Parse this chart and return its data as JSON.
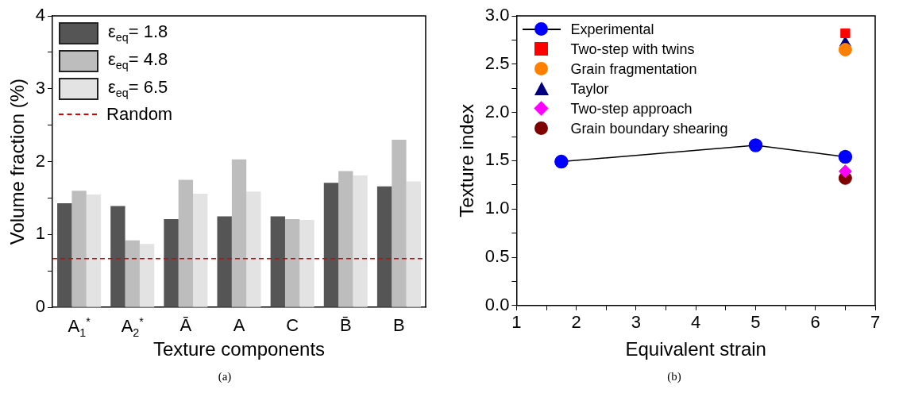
{
  "chart_data": [
    {
      "type": "bar",
      "xlabel": "Texture components",
      "ylabel": "Volume fraction (%)",
      "categories": [
        "A$_{1}$$^{*}$",
        "A$_{2}$$^{*}$",
        "Ā",
        "A",
        "C",
        "B̄",
        "B"
      ],
      "series": [
        {
          "name": "ε$_{eq}$= 1.8",
          "color": "#555555",
          "values": [
            1.43,
            1.39,
            1.21,
            1.25,
            1.25,
            1.71,
            1.66
          ]
        },
        {
          "name": "ε$_{eq}$= 4.8",
          "color": "#bdbdbd",
          "values": [
            1.6,
            0.92,
            1.75,
            2.03,
            1.21,
            1.87,
            2.3
          ]
        },
        {
          "name": "ε$_{eq}$= 6.5",
          "color": "#e3e3e3",
          "values": [
            1.55,
            0.87,
            1.56,
            1.59,
            1.2,
            1.81,
            1.73
          ]
        }
      ],
      "ref_lines": [
        {
          "axis": "y",
          "value": 0.67,
          "label": "Random",
          "color": "#dd0000",
          "line_style": "dashed"
        }
      ],
      "ylim": [
        0,
        4
      ],
      "yticks": [
        0,
        {
          "value": 0.5,
          "label": null
        },
        1,
        {
          "value": 1.5,
          "label": null
        },
        2,
        {
          "value": 2.5,
          "label": null
        },
        3,
        {
          "value": 3.5,
          "label": null
        },
        4
      ],
      "grid": false,
      "legend": "top left",
      "annotations": [
        "(a)"
      ]
    },
    {
      "type": "scatter",
      "xlabel": "Equivalent strain",
      "ylabel": "Texture index",
      "series": [
        {
          "name": "Experimental",
          "type": "line",
          "color": "#0000ff",
          "marker": "circle",
          "x": [
            1.75,
            5,
            6.5
          ],
          "values": [
            1.49,
            1.66,
            1.54
          ]
        },
        {
          "name": "Two-step with twins",
          "color": "#ff0000",
          "marker": "square",
          "x": [
            6.5
          ],
          "values": [
            2.82
          ]
        },
        {
          "name": "Grain fragmentation",
          "color": "#ff8000",
          "marker": "circle",
          "x": [
            6.5
          ],
          "values": [
            2.65
          ]
        },
        {
          "name": "Taylor",
          "color": "#000080",
          "marker": "triangle",
          "x": [
            6.5
          ],
          "values": [
            2.72
          ]
        },
        {
          "name": "Two-step approach",
          "color": "#ff00ff",
          "marker": "diamond",
          "x": [
            6.5
          ],
          "values": [
            1.39
          ]
        },
        {
          "name": "Grain boundary shearing",
          "color": "#800000",
          "marker": "circle",
          "x": [
            6.5
          ],
          "values": [
            1.32
          ]
        }
      ],
      "xlim": [
        1,
        7
      ],
      "xticks": [
        1,
        {
          "value": 1.5,
          "label": null
        },
        2,
        {
          "value": 2.5,
          "label": null
        },
        3,
        {
          "value": 3.5,
          "label": null
        },
        4,
        {
          "value": 4.5,
          "label": null
        },
        5,
        {
          "value": 5.5,
          "label": null
        },
        6,
        {
          "value": 6.5,
          "label": null
        },
        7
      ],
      "ylim": [
        0,
        3
      ],
      "yticks": [
        {
          "value": 0,
          "label": "0.0"
        },
        {
          "value": 0.25,
          "label": null
        },
        {
          "value": 0.5,
          "label": "0.5"
        },
        {
          "value": 0.75,
          "label": null
        },
        {
          "value": 1,
          "label": "1.0"
        },
        {
          "value": 1.25,
          "label": null
        },
        {
          "value": 1.5,
          "label": "1.5"
        },
        {
          "value": 1.75,
          "label": null
        },
        {
          "value": 2,
          "label": "2.0"
        },
        {
          "value": 2.25,
          "label": null
        },
        {
          "value": 2.5,
          "label": "2.5"
        },
        {
          "value": 2.75,
          "label": null
        },
        {
          "value": 3,
          "label": "3.0"
        }
      ],
      "grid": false,
      "legend": "top left",
      "annotations": [
        "(b)"
      ]
    }
  ]
}
